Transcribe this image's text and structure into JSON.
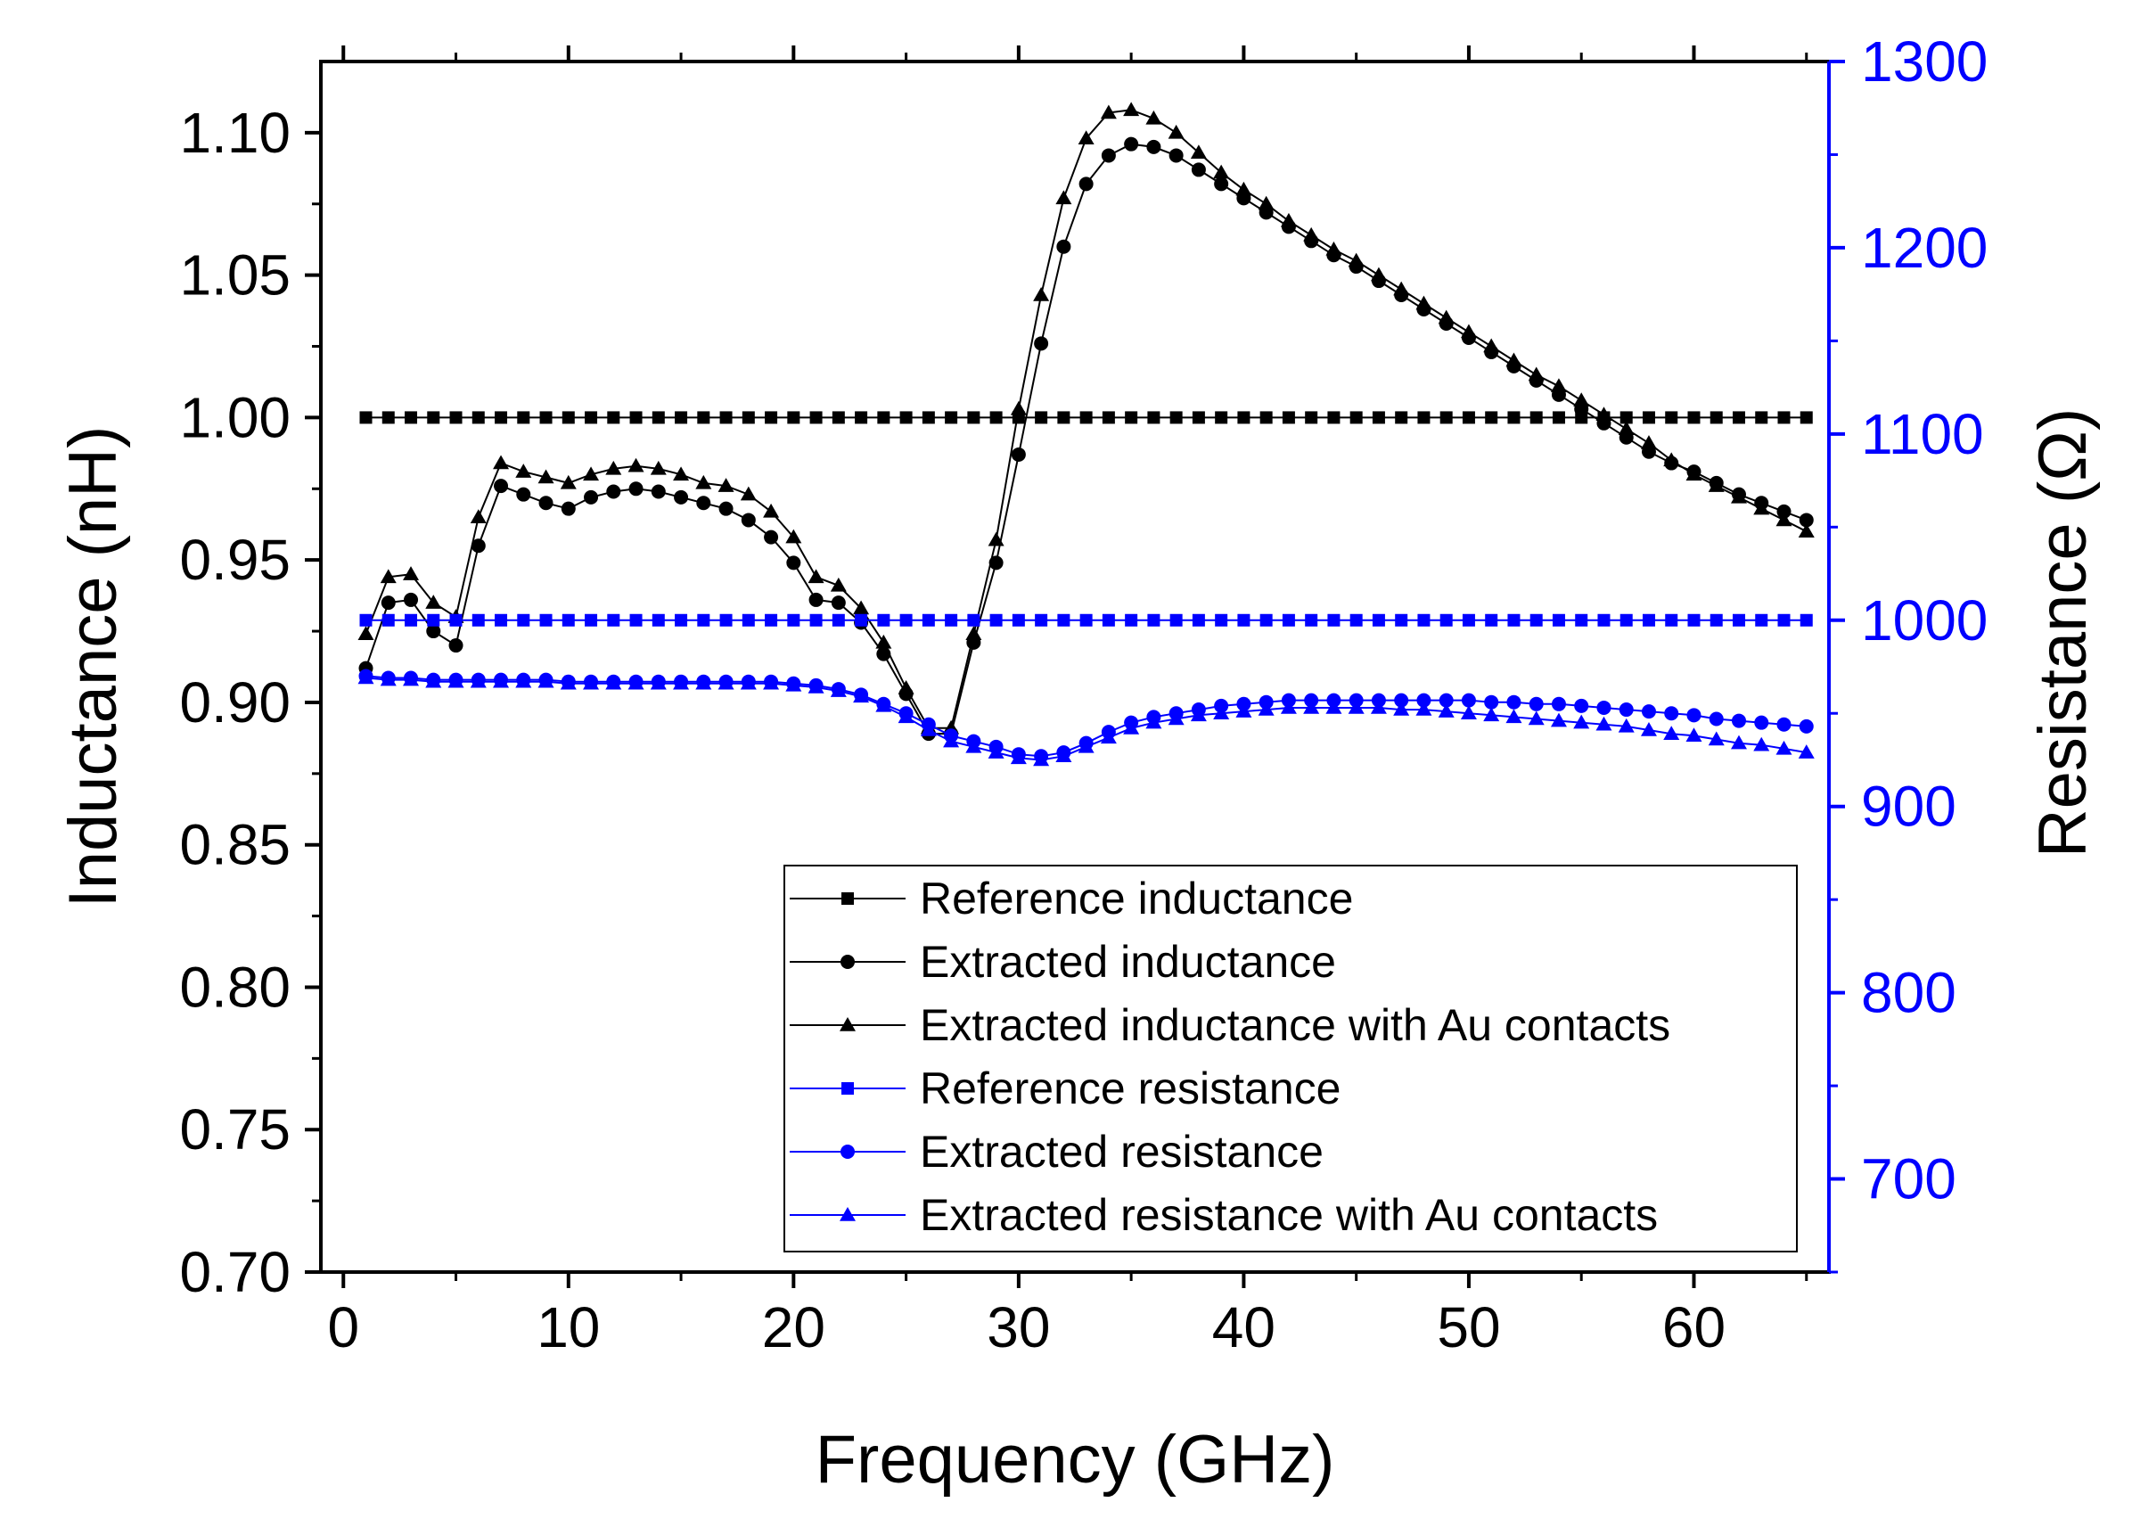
{
  "chart_data": {
    "type": "line",
    "xlabel": "Frequency (GHz)",
    "ylabel_left": "Inductance (nH)",
    "ylabel_right": "Resistance (Ω)",
    "xlim": [
      -1,
      66
    ],
    "ylim_left": [
      0.7,
      1.125
    ],
    "ylim_right": [
      650,
      1300
    ],
    "xticks": [
      "0",
      "10",
      "20",
      "30",
      "40",
      "50",
      "60"
    ],
    "yticks_left": [
      "0.70",
      "0.75",
      "0.80",
      "0.85",
      "0.90",
      "0.95",
      "1.00",
      "1.05",
      "1.10"
    ],
    "yticks_right": [
      "700",
      "800",
      "900",
      "1000",
      "1100",
      "1200",
      "1300"
    ],
    "grid": false,
    "legend_position": "bottom-right",
    "x": [
      1,
      2,
      3,
      4,
      5,
      6,
      7,
      8,
      9,
      10,
      11,
      12,
      13,
      14,
      15,
      16,
      17,
      18,
      19,
      20,
      21,
      22,
      23,
      24,
      25,
      26,
      27,
      28,
      29,
      30,
      31,
      32,
      33,
      34,
      35,
      36,
      37,
      38,
      39,
      40,
      41,
      42,
      43,
      44,
      45,
      46,
      47,
      48,
      49,
      50,
      51,
      52,
      53,
      54,
      55,
      56,
      57,
      58,
      59,
      60,
      61,
      62,
      63,
      64,
      65
    ],
    "series": [
      {
        "name": "Reference inductance",
        "axis": "left",
        "marker": "square",
        "color": "#000000",
        "values": [
          1.0,
          1.0,
          1.0,
          1.0,
          1.0,
          1.0,
          1.0,
          1.0,
          1.0,
          1.0,
          1.0,
          1.0,
          1.0,
          1.0,
          1.0,
          1.0,
          1.0,
          1.0,
          1.0,
          1.0,
          1.0,
          1.0,
          1.0,
          1.0,
          1.0,
          1.0,
          1.0,
          1.0,
          1.0,
          1.0,
          1.0,
          1.0,
          1.0,
          1.0,
          1.0,
          1.0,
          1.0,
          1.0,
          1.0,
          1.0,
          1.0,
          1.0,
          1.0,
          1.0,
          1.0,
          1.0,
          1.0,
          1.0,
          1.0,
          1.0,
          1.0,
          1.0,
          1.0,
          1.0,
          1.0,
          1.0,
          1.0,
          1.0,
          1.0,
          1.0,
          1.0,
          1.0,
          1.0,
          1.0,
          1.0
        ]
      },
      {
        "name": "Extracted inductance",
        "axis": "left",
        "marker": "circle",
        "color": "#000000",
        "values": [
          0.912,
          0.935,
          0.936,
          0.925,
          0.92,
          0.955,
          0.976,
          0.973,
          0.97,
          0.968,
          0.972,
          0.974,
          0.975,
          0.974,
          0.972,
          0.97,
          0.968,
          0.964,
          0.958,
          0.949,
          0.936,
          0.935,
          0.928,
          0.917,
          0.903,
          0.889,
          0.889,
          0.921,
          0.949,
          0.987,
          1.026,
          1.06,
          1.082,
          1.092,
          1.096,
          1.095,
          1.092,
          1.087,
          1.082,
          1.077,
          1.072,
          1.067,
          1.062,
          1.057,
          1.053,
          1.048,
          1.043,
          1.038,
          1.033,
          1.028,
          1.023,
          1.018,
          1.013,
          1.008,
          1.003,
          0.998,
          0.993,
          0.988,
          0.984,
          0.981,
          0.977,
          0.973,
          0.97,
          0.967,
          0.964
        ]
      },
      {
        "name": "Extracted inductance with Au contacts",
        "axis": "left",
        "marker": "triangle",
        "color": "#000000",
        "values": [
          0.924,
          0.944,
          0.945,
          0.935,
          0.93,
          0.965,
          0.984,
          0.981,
          0.979,
          0.977,
          0.98,
          0.982,
          0.983,
          0.982,
          0.98,
          0.977,
          0.976,
          0.973,
          0.967,
          0.958,
          0.944,
          0.941,
          0.933,
          0.921,
          0.905,
          0.891,
          0.891,
          0.924,
          0.957,
          1.003,
          1.043,
          1.077,
          1.098,
          1.107,
          1.108,
          1.105,
          1.1,
          1.093,
          1.086,
          1.08,
          1.075,
          1.069,
          1.064,
          1.059,
          1.055,
          1.05,
          1.045,
          1.04,
          1.035,
          1.03,
          1.025,
          1.02,
          1.015,
          1.011,
          1.006,
          1.001,
          0.996,
          0.991,
          0.985,
          0.98,
          0.976,
          0.972,
          0.968,
          0.964,
          0.96
        ]
      },
      {
        "name": "Reference resistance",
        "axis": "right",
        "marker": "square",
        "color": "#0000ff",
        "values": [
          1000,
          1000,
          1000,
          1000,
          1000,
          1000,
          1000,
          1000,
          1000,
          1000,
          1000,
          1000,
          1000,
          1000,
          1000,
          1000,
          1000,
          1000,
          1000,
          1000,
          1000,
          1000,
          1000,
          1000,
          1000,
          1000,
          1000,
          1000,
          1000,
          1000,
          1000,
          1000,
          1000,
          1000,
          1000,
          1000,
          1000,
          1000,
          1000,
          1000,
          1000,
          1000,
          1000,
          1000,
          1000,
          1000,
          1000,
          1000,
          1000,
          1000,
          1000,
          1000,
          1000,
          1000,
          1000,
          1000,
          1000,
          1000,
          1000,
          1000,
          1000,
          1000,
          1000,
          1000,
          1000
        ]
      },
      {
        "name": "Extracted resistance",
        "axis": "right",
        "marker": "circle",
        "color": "#0000ff",
        "values": [
          970,
          969,
          969,
          968,
          968,
          968,
          968,
          968,
          968,
          967,
          967,
          967,
          967,
          967,
          967,
          967,
          967,
          967,
          967,
          966,
          965,
          963,
          960,
          955,
          950,
          944,
          938,
          935,
          932,
          928,
          927,
          929,
          934,
          940,
          945,
          948,
          950,
          952,
          954,
          955,
          956,
          957,
          957,
          957,
          957,
          957,
          957,
          957,
          957,
          957,
          956,
          956,
          955,
          955,
          954,
          953,
          952,
          951,
          950,
          949,
          947,
          946,
          945,
          944,
          943
        ]
      },
      {
        "name": "Extracted resistance with Au contacts",
        "axis": "right",
        "marker": "triangle",
        "color": "#0000ff",
        "values": [
          969,
          968,
          968,
          967,
          967,
          967,
          967,
          967,
          967,
          966,
          966,
          966,
          966,
          966,
          966,
          966,
          966,
          966,
          966,
          965,
          964,
          962,
          959,
          954,
          948,
          941,
          935,
          932,
          929,
          926,
          925,
          927,
          932,
          937,
          942,
          945,
          947,
          949,
          950,
          951,
          952,
          953,
          953,
          953,
          953,
          953,
          952,
          952,
          951,
          950,
          949,
          948,
          947,
          946,
          945,
          944,
          943,
          941,
          939,
          938,
          936,
          934,
          933,
          931,
          929
        ]
      }
    ]
  }
}
